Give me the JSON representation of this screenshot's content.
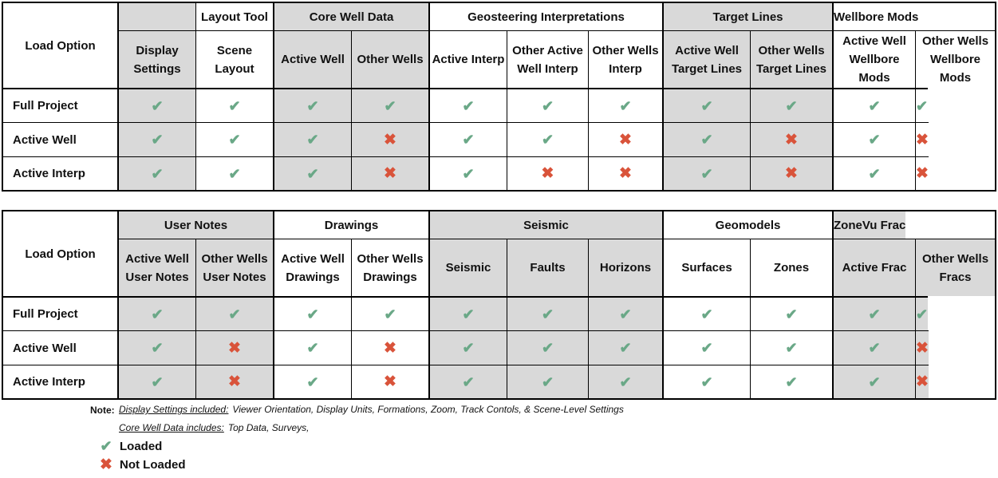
{
  "symbols": {
    "loaded": "✔",
    "not_loaded": "✖"
  },
  "colors": {
    "header_fill": "#d9d9d9",
    "loaded": "#6aa887",
    "not_loaded": "#d9533a"
  },
  "table1": {
    "row_header": "Load Option",
    "groups": [
      "",
      "Layout Tool",
      "Core Well Data",
      "Geosteering Interpretations",
      "Target Lines",
      "Wellbore Mods"
    ],
    "columns": [
      "Display Settings",
      "Scene Layout",
      "Active Well",
      "Other Wells",
      "Active Interp",
      "Other Active Well Interp",
      "Other Wells Interp",
      "Active Well Target Lines",
      "Other Wells Target Lines",
      "Active Well Wellbore Mods",
      "Other Wells Wellbore Mods"
    ],
    "rows": [
      {
        "label": "Full Project",
        "values": [
          true,
          true,
          true,
          true,
          true,
          true,
          true,
          true,
          true,
          true,
          true
        ]
      },
      {
        "label": "Active Well",
        "values": [
          true,
          true,
          true,
          false,
          true,
          true,
          false,
          true,
          false,
          true,
          false
        ]
      },
      {
        "label": "Active Interp",
        "values": [
          true,
          true,
          true,
          false,
          true,
          false,
          false,
          true,
          false,
          true,
          false
        ]
      }
    ]
  },
  "table2": {
    "row_header": "Load Option",
    "groups": [
      "User Notes",
      "Drawings",
      "Seismic",
      "Geomodels",
      "ZoneVu Frac"
    ],
    "columns": [
      "Active Well User Notes",
      "Other Wells User Notes",
      "Active Well Drawings",
      "Other Wells Drawings",
      "Seismic",
      "Faults",
      "Horizons",
      "Surfaces",
      "Zones",
      "Active Frac",
      "Other Wells Fracs"
    ],
    "rows": [
      {
        "label": "Full Project",
        "values": [
          true,
          true,
          true,
          true,
          true,
          true,
          true,
          true,
          true,
          true,
          true
        ]
      },
      {
        "label": "Active Well",
        "values": [
          true,
          false,
          true,
          false,
          true,
          true,
          true,
          true,
          true,
          true,
          false
        ]
      },
      {
        "label": "Active Interp",
        "values": [
          true,
          false,
          true,
          false,
          true,
          true,
          true,
          true,
          true,
          true,
          false
        ]
      }
    ]
  },
  "notes": {
    "label": "Note:",
    "line1_title": "Display Settings included:",
    "line1_text": "Viewer Orientation, Display Units, Formations, Zoom, Track Contols, & Scene-Level Settings",
    "line2_title": "Core Well Data includes:",
    "line2_text": "Top Data, Surveys,"
  },
  "legend": {
    "loaded": "Loaded",
    "not_loaded": "Not Loaded"
  }
}
